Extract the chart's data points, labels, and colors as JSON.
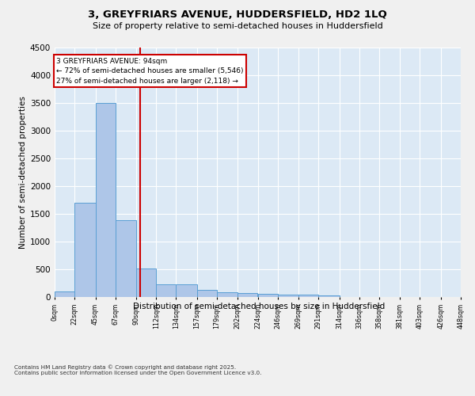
{
  "title_line1": "3, GREYFRIARS AVENUE, HUDDERSFIELD, HD2 1LQ",
  "title_line2": "Size of property relative to semi-detached houses in Huddersfield",
  "xlabel": "Distribution of semi-detached houses by size in Huddersfield",
  "ylabel": "Number of semi-detached properties",
  "footnote": "Contains HM Land Registry data © Crown copyright and database right 2025.\nContains public sector information licensed under the Open Government Licence v3.0.",
  "bar_edges": [
    0,
    22,
    45,
    67,
    90,
    112,
    134,
    157,
    179,
    202,
    224,
    246,
    269,
    291,
    314,
    336,
    358,
    381,
    403,
    426,
    448
  ],
  "bar_heights": [
    100,
    1700,
    3500,
    1380,
    520,
    230,
    230,
    130,
    80,
    70,
    55,
    45,
    40,
    35,
    0,
    0,
    0,
    0,
    0,
    0
  ],
  "bar_color": "#aec6e8",
  "bar_edge_color": "#5a9fd4",
  "property_size": 94,
  "annotation_line1": "3 GREYFRIARS AVENUE: 94sqm",
  "annotation_line2": "← 72% of semi-detached houses are smaller (5,546)",
  "annotation_line3": "27% of semi-detached houses are larger (2,118) →",
  "annotation_box_color": "#cc0000",
  "vline_color": "#cc0000",
  "ylim": [
    0,
    4500
  ],
  "yticks": [
    0,
    500,
    1000,
    1500,
    2000,
    2500,
    3000,
    3500,
    4000,
    4500
  ],
  "bg_color": "#dce9f5",
  "grid_color": "#ffffff",
  "fig_bg_color": "#f0f0f0",
  "tick_labels": [
    "0sqm",
    "22sqm",
    "45sqm",
    "67sqm",
    "90sqm",
    "112sqm",
    "134sqm",
    "157sqm",
    "179sqm",
    "202sqm",
    "224sqm",
    "246sqm",
    "269sqm",
    "291sqm",
    "314sqm",
    "336sqm",
    "358sqm",
    "381sqm",
    "403sqm",
    "426sqm",
    "448sqm"
  ]
}
